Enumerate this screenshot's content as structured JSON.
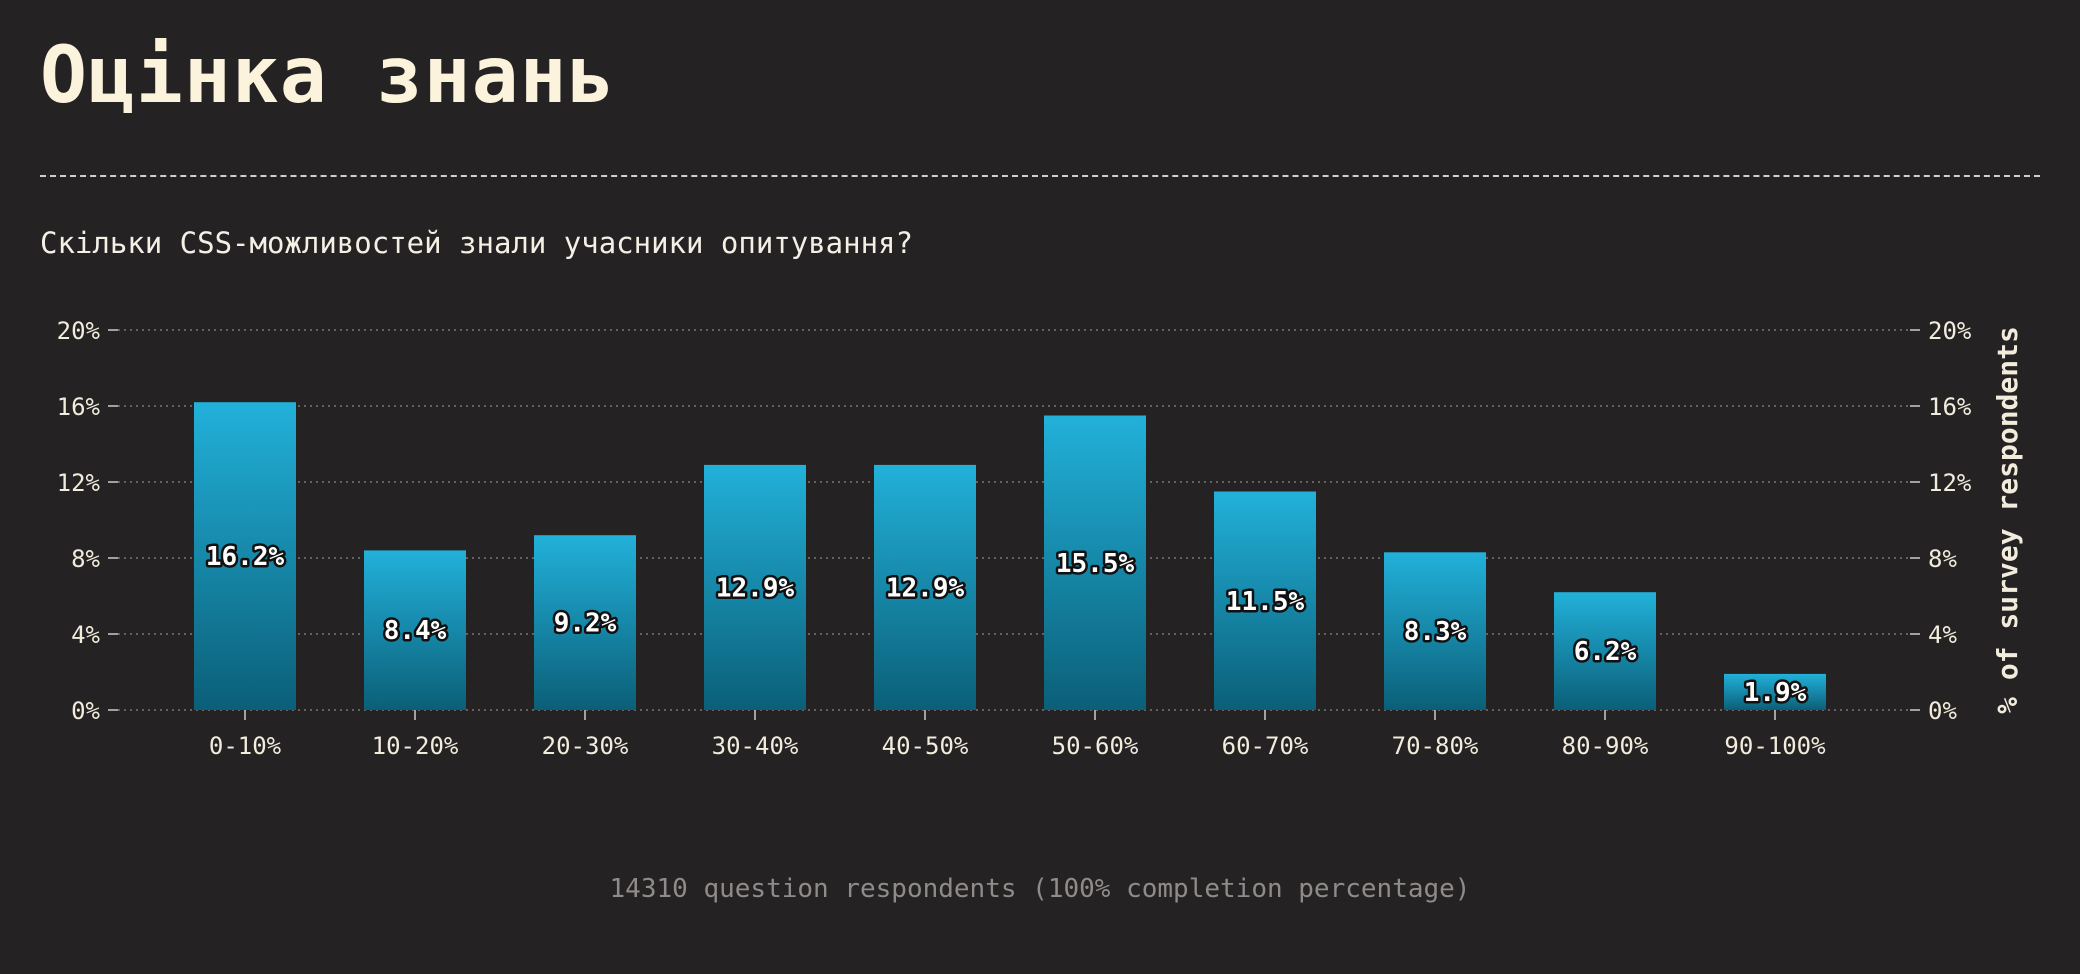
{
  "header": {
    "title": "Оцінка знань"
  },
  "question": "Скільки CSS-можливостей знали учасники опитування?",
  "footer": {
    "note": "14310 question respondents (100% completion percentage)"
  },
  "colors": {
    "background": "#252224",
    "bar_top": "#22b1da",
    "bar_bottom": "#0b5f78",
    "text": "#f1ecdc"
  },
  "chart_data": {
    "type": "bar",
    "categories": [
      "0-10%",
      "10-20%",
      "20-30%",
      "30-40%",
      "40-50%",
      "50-60%",
      "60-70%",
      "70-80%",
      "80-90%",
      "90-100%"
    ],
    "values": [
      16.2,
      8.4,
      9.2,
      12.9,
      12.9,
      15.5,
      11.5,
      8.3,
      6.2,
      1.9
    ],
    "data_labels": [
      "16.2%",
      "8.4%",
      "9.2%",
      "12.9%",
      "12.9%",
      "15.5%",
      "11.5%",
      "8.3%",
      "6.2%",
      "1.9%"
    ],
    "yticks": [
      0,
      4,
      8,
      12,
      16,
      20
    ],
    "ytick_labels": [
      "0%",
      "4%",
      "8%",
      "12%",
      "16%",
      "20%"
    ],
    "ylim": [
      0,
      20
    ],
    "ylabel_right": "% of survey respondents",
    "grid": true,
    "axes": "left and right"
  }
}
